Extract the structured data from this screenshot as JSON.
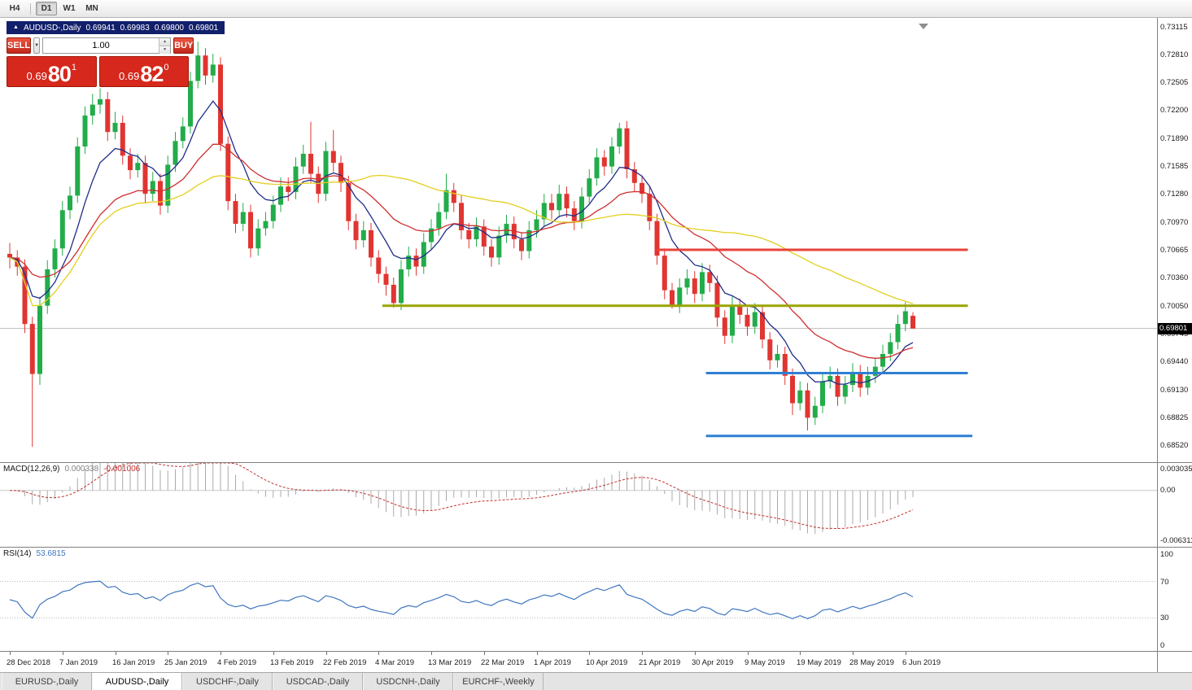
{
  "toolbar": {
    "timeframes": [
      {
        "label": "H4",
        "active": false
      },
      {
        "label": "D1",
        "active": true
      },
      {
        "label": "W1",
        "active": false
      },
      {
        "label": "MN",
        "active": false
      }
    ]
  },
  "icons": {
    "collapse": "▲",
    "dropdown": "▼",
    "spin_up": "▲",
    "spin_down": "▼"
  },
  "chart_header": {
    "symbol": "AUDUSD-,Daily",
    "open": "0.69941",
    "high": "0.69983",
    "low": "0.69800",
    "close": "0.69801"
  },
  "one_click": {
    "sell_label": "SELL",
    "buy_label": "BUY",
    "volume": "1.00",
    "sell_price": {
      "prefix": "0.69",
      "big": "80",
      "sup": "1"
    },
    "buy_price": {
      "prefix": "0.69",
      "big": "82",
      "sup": "0"
    }
  },
  "price_axis": {
    "current": "0.69801",
    "ticks": [
      "0.73115",
      "0.72810",
      "0.72505",
      "0.72200",
      "0.71890",
      "0.71585",
      "0.71280",
      "0.70970",
      "0.70665",
      "0.70360",
      "0.70050",
      "0.69745",
      "0.69440",
      "0.69130",
      "0.68825",
      "0.68520"
    ]
  },
  "levels": [
    {
      "name": "resistance-line-red",
      "price": 0.70665,
      "color": "#e8433b",
      "x1_bar": 86,
      "x2_bar": 127.3
    },
    {
      "name": "mid-line-olive",
      "price": 0.7005,
      "color": "#9aa400",
      "x1_bar": 49.5,
      "x2_bar": 127.3
    },
    {
      "name": "support-line-blue-upper",
      "price": 0.6931,
      "color": "#2f7fd4",
      "x1_bar": 92.5,
      "x2_bar": 127.3
    },
    {
      "name": "support-line-blue-lower",
      "price": 0.6862,
      "color": "#2f7fd4",
      "x1_bar": 92.5,
      "x2_bar": 127.9
    }
  ],
  "colors": {
    "up": "#22ac4a",
    "down": "#e03531",
    "macd_histogram": "#aaaaaa",
    "macd_signal": "#c03030",
    "rsi": "#3f76c0",
    "bid_line": "#bdbdbd"
  },
  "chart_data": {
    "type": "candlestick",
    "symbol": "AUDUSD",
    "timeframe": "Daily",
    "title": "AUDUSD-,Daily",
    "ylim": [
      0.68331,
      0.73213
    ],
    "x_label_step": 7,
    "x_labels": [
      "28 Dec 2018",
      "7 Jan 2019",
      "16 Jan 2019",
      "25 Jan 2019",
      "4 Feb 2019",
      "13 Feb 2019",
      "22 Feb 2019",
      "4 Mar 2019",
      "13 Mar 2019",
      "22 Mar 2019",
      "1 Apr 2019",
      "10 Apr 2019",
      "21 Apr 2019",
      "30 Apr 2019",
      "9 May 2019",
      "19 May 2019",
      "28 May 2019",
      "6 Jun 2019"
    ],
    "moving_averages": [
      {
        "name": "ma-fast",
        "type": "ema",
        "period": 8,
        "color": "#1f2d8a"
      },
      {
        "name": "ma-mid",
        "type": "ema",
        "period": 21,
        "color": "#cf2e2e"
      },
      {
        "name": "ma-slow",
        "type": "sma",
        "period": 45,
        "color": "#e3cf1e"
      }
    ],
    "candles": [
      [
        0.7062,
        0.7074,
        0.7046,
        0.7058
      ],
      [
        0.7058,
        0.7066,
        0.7038,
        0.7048
      ],
      [
        0.7048,
        0.7056,
        0.6975,
        0.6985
      ],
      [
        0.6985,
        0.6993,
        0.685,
        0.693
      ],
      [
        0.693,
        0.7015,
        0.6918,
        0.7005
      ],
      [
        0.7005,
        0.7055,
        0.6996,
        0.7045
      ],
      [
        0.7045,
        0.7078,
        0.7036,
        0.7068
      ],
      [
        0.7068,
        0.712,
        0.706,
        0.711
      ],
      [
        0.711,
        0.7136,
        0.71,
        0.7126
      ],
      [
        0.7126,
        0.719,
        0.7118,
        0.718
      ],
      [
        0.718,
        0.7224,
        0.7172,
        0.7214
      ],
      [
        0.7214,
        0.7238,
        0.7204,
        0.7226
      ],
      [
        0.7226,
        0.7244,
        0.7216,
        0.7232
      ],
      [
        0.7232,
        0.724,
        0.7186,
        0.7196
      ],
      [
        0.7196,
        0.7218,
        0.7188,
        0.7206
      ],
      [
        0.7206,
        0.7214,
        0.716,
        0.717
      ],
      [
        0.717,
        0.7178,
        0.7144,
        0.7154
      ],
      [
        0.7154,
        0.7172,
        0.7146,
        0.7162
      ],
      [
        0.7162,
        0.717,
        0.7118,
        0.7128
      ],
      [
        0.7128,
        0.7152,
        0.712,
        0.7142
      ],
      [
        0.7142,
        0.715,
        0.7105,
        0.7115
      ],
      [
        0.7115,
        0.717,
        0.7107,
        0.716
      ],
      [
        0.716,
        0.7196,
        0.7152,
        0.7186
      ],
      [
        0.7186,
        0.7212,
        0.7178,
        0.7202
      ],
      [
        0.7202,
        0.7262,
        0.7194,
        0.7252
      ],
      [
        0.7252,
        0.7295,
        0.7244,
        0.728
      ],
      [
        0.728,
        0.7288,
        0.7248,
        0.7258
      ],
      [
        0.7258,
        0.7282,
        0.725,
        0.727
      ],
      [
        0.727,
        0.7278,
        0.7175,
        0.7183
      ],
      [
        0.7183,
        0.7191,
        0.711,
        0.712
      ],
      [
        0.712,
        0.7128,
        0.7085,
        0.7095
      ],
      [
        0.7095,
        0.7118,
        0.7087,
        0.7108
      ],
      [
        0.7108,
        0.7116,
        0.7058,
        0.7068
      ],
      [
        0.7068,
        0.71,
        0.706,
        0.709
      ],
      [
        0.709,
        0.7108,
        0.7082,
        0.7098
      ],
      [
        0.7098,
        0.7126,
        0.709,
        0.7116
      ],
      [
        0.7116,
        0.7146,
        0.7108,
        0.7136
      ],
      [
        0.7136,
        0.7146,
        0.712,
        0.713
      ],
      [
        0.713,
        0.7168,
        0.7122,
        0.7158
      ],
      [
        0.7158,
        0.7182,
        0.715,
        0.7172
      ],
      [
        0.7172,
        0.7207,
        0.714,
        0.715
      ],
      [
        0.715,
        0.7158,
        0.7118,
        0.7128
      ],
      [
        0.7128,
        0.7185,
        0.712,
        0.7175
      ],
      [
        0.7175,
        0.7198,
        0.7152,
        0.7162
      ],
      [
        0.7162,
        0.717,
        0.713,
        0.714
      ],
      [
        0.714,
        0.7148,
        0.7088,
        0.7098
      ],
      [
        0.7098,
        0.7106,
        0.7067,
        0.7077
      ],
      [
        0.7077,
        0.7098,
        0.7069,
        0.7088
      ],
      [
        0.7088,
        0.7096,
        0.7048,
        0.7058
      ],
      [
        0.7058,
        0.7066,
        0.703,
        0.704
      ],
      [
        0.704,
        0.7048,
        0.7016,
        0.7028
      ],
      [
        0.7028,
        0.7036,
        0.7003,
        0.7008
      ],
      [
        0.7008,
        0.7055,
        0.7,
        0.7045
      ],
      [
        0.7045,
        0.707,
        0.7037,
        0.706
      ],
      [
        0.706,
        0.7068,
        0.7038,
        0.7048
      ],
      [
        0.7048,
        0.7085,
        0.704,
        0.7075
      ],
      [
        0.7075,
        0.71,
        0.7067,
        0.709
      ],
      [
        0.709,
        0.7118,
        0.7082,
        0.7108
      ],
      [
        0.7108,
        0.715,
        0.71,
        0.7132
      ],
      [
        0.7132,
        0.714,
        0.7108,
        0.7118
      ],
      [
        0.7118,
        0.7126,
        0.7078,
        0.7088
      ],
      [
        0.7088,
        0.7096,
        0.7068,
        0.7078
      ],
      [
        0.7078,
        0.7102,
        0.707,
        0.7092
      ],
      [
        0.7092,
        0.71,
        0.706,
        0.707
      ],
      [
        0.707,
        0.7078,
        0.7048,
        0.7058
      ],
      [
        0.7058,
        0.7092,
        0.705,
        0.7082
      ],
      [
        0.7082,
        0.7105,
        0.7074,
        0.7095
      ],
      [
        0.7095,
        0.7103,
        0.7068,
        0.7078
      ],
      [
        0.7078,
        0.7086,
        0.7055,
        0.7065
      ],
      [
        0.7065,
        0.7098,
        0.7057,
        0.7088
      ],
      [
        0.7088,
        0.711,
        0.708,
        0.71
      ],
      [
        0.71,
        0.7128,
        0.7092,
        0.7118
      ],
      [
        0.7118,
        0.7128,
        0.71,
        0.711
      ],
      [
        0.711,
        0.7138,
        0.7102,
        0.7128
      ],
      [
        0.7128,
        0.7136,
        0.7102,
        0.7112
      ],
      [
        0.7112,
        0.712,
        0.7088,
        0.7098
      ],
      [
        0.7098,
        0.7135,
        0.709,
        0.7125
      ],
      [
        0.7125,
        0.7155,
        0.7117,
        0.7145
      ],
      [
        0.7145,
        0.7178,
        0.7137,
        0.7168
      ],
      [
        0.7168,
        0.7176,
        0.7148,
        0.7158
      ],
      [
        0.7158,
        0.719,
        0.715,
        0.718
      ],
      [
        0.718,
        0.7206,
        0.7172,
        0.72
      ],
      [
        0.72,
        0.7208,
        0.7145,
        0.7155
      ],
      [
        0.7155,
        0.7163,
        0.713,
        0.714
      ],
      [
        0.714,
        0.7148,
        0.7118,
        0.7128
      ],
      [
        0.7128,
        0.7136,
        0.7088,
        0.7098
      ],
      [
        0.7098,
        0.7106,
        0.705,
        0.706
      ],
      [
        0.706,
        0.7068,
        0.7012,
        0.7022
      ],
      [
        0.7022,
        0.703,
        0.7002,
        0.7005
      ],
      [
        0.7005,
        0.7035,
        0.6997,
        0.7025
      ],
      [
        0.7025,
        0.7045,
        0.7017,
        0.7035
      ],
      [
        0.7035,
        0.7043,
        0.7008,
        0.7018
      ],
      [
        0.7018,
        0.7052,
        0.701,
        0.7042
      ],
      [
        0.7042,
        0.705,
        0.702,
        0.703
      ],
      [
        0.703,
        0.7038,
        0.6982,
        0.6992
      ],
      [
        0.6992,
        0.7,
        0.6963,
        0.6972
      ],
      [
        0.6972,
        0.7015,
        0.6964,
        0.7005
      ],
      [
        0.7005,
        0.7013,
        0.6985,
        0.6995
      ],
      [
        0.6995,
        0.7003,
        0.6972,
        0.6982
      ],
      [
        0.6982,
        0.7008,
        0.6974,
        0.6998
      ],
      [
        0.6998,
        0.7006,
        0.6958,
        0.6968
      ],
      [
        0.6968,
        0.6976,
        0.6935,
        0.6945
      ],
      [
        0.6945,
        0.6962,
        0.6937,
        0.6952
      ],
      [
        0.6952,
        0.696,
        0.6918,
        0.6928
      ],
      [
        0.6928,
        0.6936,
        0.6885,
        0.6898
      ],
      [
        0.6898,
        0.6922,
        0.689,
        0.6912
      ],
      [
        0.6912,
        0.692,
        0.6868,
        0.6882
      ],
      [
        0.6882,
        0.6905,
        0.6874,
        0.6895
      ],
      [
        0.6895,
        0.6932,
        0.6887,
        0.6922
      ],
      [
        0.6922,
        0.6938,
        0.6914,
        0.6928
      ],
      [
        0.6928,
        0.6936,
        0.6895,
        0.6905
      ],
      [
        0.6905,
        0.6928,
        0.6897,
        0.6918
      ],
      [
        0.6918,
        0.6942,
        0.691,
        0.6932
      ],
      [
        0.6932,
        0.694,
        0.6905,
        0.6915
      ],
      [
        0.6915,
        0.6938,
        0.6907,
        0.6928
      ],
      [
        0.6928,
        0.6948,
        0.692,
        0.6938
      ],
      [
        0.6938,
        0.6962,
        0.693,
        0.6952
      ],
      [
        0.6952,
        0.6975,
        0.6944,
        0.6965
      ],
      [
        0.6965,
        0.6995,
        0.6957,
        0.6985
      ],
      [
        0.6985,
        0.7009,
        0.6977,
        0.6999
      ],
      [
        0.6994,
        0.6998,
        0.698,
        0.698
      ]
    ]
  },
  "macd": {
    "label": "MACD(12,26,9)",
    "value_main": "0.000338",
    "value_signal": "-0.001006",
    "params": [
      12,
      26,
      9
    ],
    "ylim": [
      -0.006311,
      0.003035
    ],
    "axis_top": "0.003035",
    "axis_zero": "0.00",
    "axis_bottom": "-0.006311"
  },
  "rsi": {
    "label": "RSI(14)",
    "value": "53.6815",
    "period": 14,
    "levels": [
      70,
      30
    ],
    "axis_values": [
      100,
      70,
      30,
      0
    ]
  },
  "tabs": [
    {
      "label": "EURUSD-,Daily",
      "active": false
    },
    {
      "label": "AUDUSD-,Daily",
      "active": true
    },
    {
      "label": "USDCHF-,Daily",
      "active": false
    },
    {
      "label": "USDCAD-,Daily",
      "active": false
    },
    {
      "label": "USDCNH-,Daily",
      "active": false
    },
    {
      "label": "EURCHF-,Weekly",
      "active": false
    }
  ]
}
